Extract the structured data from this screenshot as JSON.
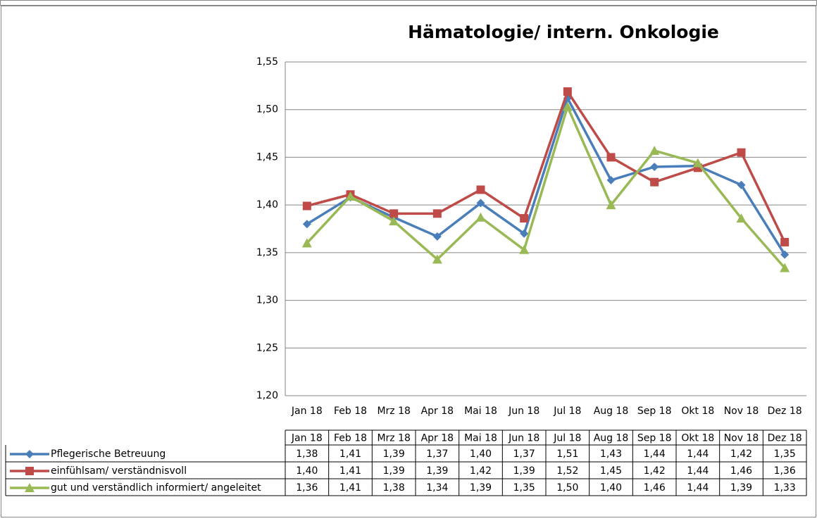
{
  "chart_data": {
    "type": "line",
    "title": "Hämatologie/ intern. Onkologie",
    "categories": [
      "Jan 18",
      "Feb 18",
      "Mrz 18",
      "Apr 18",
      "Mai 18",
      "Jun 18",
      "Jul 18",
      "Aug 18",
      "Sep 18",
      "Okt 18",
      "Nov 18",
      "Dez 18"
    ],
    "ylim": [
      1.2,
      1.55
    ],
    "yticks": [
      {
        "value": 1.2,
        "label": "1,20"
      },
      {
        "value": 1.25,
        "label": "1,25"
      },
      {
        "value": 1.3,
        "label": "1,30"
      },
      {
        "value": 1.35,
        "label": "1,35"
      },
      {
        "value": 1.4,
        "label": "1,40"
      },
      {
        "value": 1.45,
        "label": "1,45"
      },
      {
        "value": 1.5,
        "label": "1,50"
      },
      {
        "value": 1.55,
        "label": "1,55"
      }
    ],
    "grid": true,
    "series": [
      {
        "name": "Pflegerische Betreuung",
        "color": "#4a7ebb",
        "marker": "diamond",
        "values": [
          1.38,
          1.408,
          1.387,
          1.367,
          1.402,
          1.37,
          1.512,
          1.426,
          1.44,
          1.441,
          1.421,
          1.348
        ],
        "value_labels": [
          "1,38",
          "1,41",
          "1,39",
          "1,37",
          "1,40",
          "1,37",
          "1,51",
          "1,43",
          "1,44",
          "1,44",
          "1,42",
          "1,35"
        ]
      },
      {
        "name": "einfühlsam/ verständnisvoll",
        "color": "#be4b48",
        "marker": "square",
        "values": [
          1.399,
          1.411,
          1.391,
          1.391,
          1.416,
          1.386,
          1.519,
          1.45,
          1.424,
          1.439,
          1.455,
          1.361
        ],
        "value_labels": [
          "1,40",
          "1,41",
          "1,39",
          "1,39",
          "1,42",
          "1,39",
          "1,52",
          "1,45",
          "1,42",
          "1,44",
          "1,46",
          "1,36"
        ]
      },
      {
        "name": "gut und verständlich informiert/ angeleitet",
        "color": "#98b954",
        "marker": "triangle",
        "values": [
          1.36,
          1.409,
          1.383,
          1.343,
          1.387,
          1.353,
          1.503,
          1.4,
          1.457,
          1.444,
          1.386,
          1.334
        ],
        "value_labels": [
          "1,36",
          "1,41",
          "1,38",
          "1,34",
          "1,39",
          "1,35",
          "1,50",
          "1,40",
          "1,46",
          "1,44",
          "1,39",
          "1,33"
        ]
      }
    ]
  }
}
